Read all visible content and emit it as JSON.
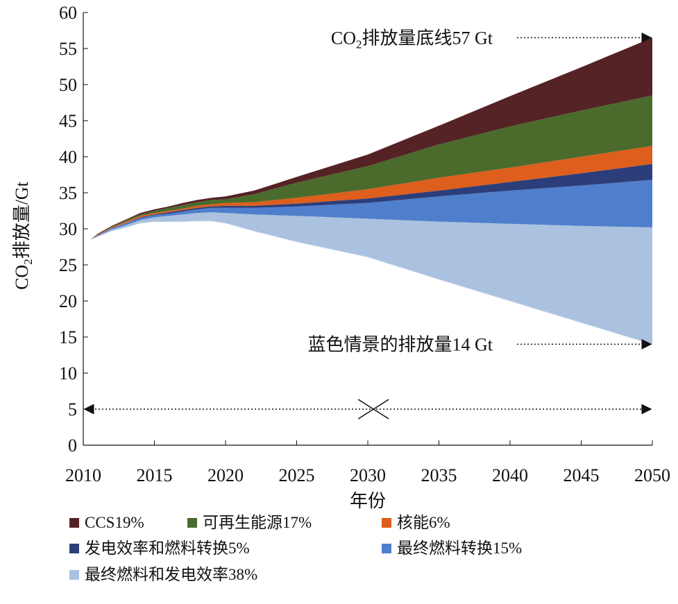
{
  "chart_data": {
    "type": "area",
    "ylabel_main": "CO",
    "ylabel_sub": "2",
    "ylabel_rest": "排放量/Gt",
    "xlabel": "年份",
    "xlim": [
      2010,
      2050
    ],
    "ylim": [
      0,
      60
    ],
    "x_ticks": [
      "2010",
      "2015",
      "2020",
      "2025",
      "2030",
      "2035",
      "2040",
      "2045",
      "2050"
    ],
    "y_ticks": [
      "0",
      "5",
      "10",
      "15",
      "20",
      "25",
      "30",
      "35",
      "40",
      "45",
      "50",
      "55",
      "60"
    ],
    "x": [
      2010.5,
      2011,
      2012,
      2013,
      2014,
      2015,
      2016,
      2017,
      2018,
      2019,
      2020,
      2022,
      2025,
      2030,
      2035,
      2040,
      2045,
      2050
    ],
    "boundaries": [
      [
        28.5,
        28.9,
        29.7,
        30.2,
        30.8,
        31.0,
        31.0,
        31.0,
        31.1,
        31.1,
        30.8,
        29.7,
        28.2,
        26.1,
        23.0,
        20.0,
        17.0,
        14.0
      ],
      [
        28.5,
        29.0,
        29.9,
        30.5,
        31.2,
        31.6,
        31.8,
        32.0,
        32.2,
        32.3,
        32.2,
        32.0,
        31.8,
        31.4,
        31.0,
        30.7,
        30.4,
        30.2
      ],
      [
        28.5,
        29.1,
        30.1,
        30.8,
        31.5,
        31.9,
        32.1,
        32.4,
        32.7,
        32.9,
        32.9,
        32.9,
        33.1,
        33.6,
        34.5,
        35.3,
        36.0,
        36.8
      ],
      [
        28.5,
        29.1,
        30.1,
        30.8,
        31.6,
        32.0,
        32.3,
        32.6,
        32.9,
        33.1,
        33.2,
        33.2,
        33.5,
        34.2,
        35.3,
        36.5,
        37.7,
        39.0
      ],
      [
        28.5,
        29.2,
        30.2,
        31.0,
        31.8,
        32.2,
        32.5,
        32.8,
        33.2,
        33.4,
        33.6,
        33.7,
        34.3,
        35.5,
        37.1,
        38.5,
        40.0,
        41.5
      ],
      [
        28.5,
        29.2,
        30.3,
        31.2,
        32.0,
        32.5,
        32.9,
        33.3,
        33.7,
        34.0,
        34.1,
        34.8,
        36.4,
        38.7,
        41.7,
        44.2,
        46.4,
        48.5
      ],
      [
        28.5,
        29.3,
        30.4,
        31.3,
        32.2,
        32.7,
        33.1,
        33.6,
        34.0,
        34.3,
        34.5,
        35.3,
        37.2,
        40.3,
        44.3,
        48.4,
        52.4,
        56.5
      ]
    ],
    "series": [
      {
        "name": "最终燃料和发电效率38%",
        "color": "#aac1df"
      },
      {
        "name": "最终燃料转换15%",
        "color": "#4f7fcc"
      },
      {
        "name": "发电效率和燃料转换5%",
        "color": "#2c3e7a"
      },
      {
        "name": "核能6%",
        "color": "#dd5e1d"
      },
      {
        "name": "可再生能源17%",
        "color": "#4a6b2c"
      },
      {
        "name": "CCS19%",
        "color": "#552225"
      }
    ],
    "legend_order": [
      "CCS19%",
      "可再生能源17%",
      "核能6%",
      "发电效率和燃料转换5%",
      "最终燃料转换15%",
      "最终燃料和发电效率38%"
    ],
    "annotations": {
      "baseline_main": "CO",
      "baseline_sub": "2",
      "baseline_rest": "排放量底线57 Gt",
      "baseline_value": 56.5,
      "blue_text": "蓝色情景的排放量14 Gt",
      "blue_value": 14.0,
      "timeline_value": 5
    }
  }
}
